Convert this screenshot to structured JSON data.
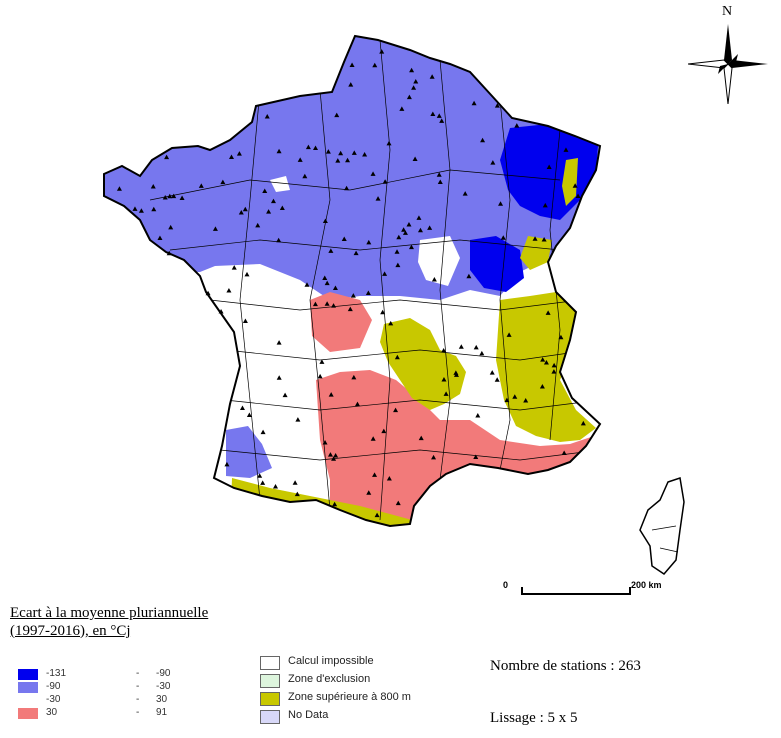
{
  "map": {
    "colors": {
      "class_dark_blue": "#0000ee",
      "class_blue": "#7777ee",
      "class_white": "#ffffff",
      "class_red": "#f27a7a",
      "zone_above_800": "#c8c800",
      "outline": "#000000"
    },
    "station_marker_icon": "triangle-icon"
  },
  "compass": {
    "north_label": "N"
  },
  "scale_bar": {
    "start_label": "0",
    "end_label": "200 km"
  },
  "title": {
    "line1": "Ecart à la moyenne pluriannuelle",
    "line2": "(1997-2016), en °Cj"
  },
  "legend": {
    "classes": [
      {
        "min": "-131",
        "max": "-90",
        "color": "#0000ee"
      },
      {
        "min": "-90",
        "max": "-30",
        "color": "#7777ee"
      },
      {
        "min": "-30",
        "max": "30",
        "color": "#ffffff"
      },
      {
        "min": "30",
        "max": "91",
        "color": "#f27a7a"
      }
    ],
    "range_separator": "-",
    "zones": [
      {
        "label": "Calcul  impossible",
        "color": "#ffffff"
      },
      {
        "label": "Zone d'exclusion",
        "color": "#ddf5dd"
      },
      {
        "label": "Zone supérieure à 800 m",
        "color": "#c8c800"
      },
      {
        "label": "No Data",
        "color": "#d8d8f8"
      }
    ]
  },
  "stats": {
    "stations": "Nombre de stations : 263",
    "smoothing": "Lissage : 5 x 5"
  }
}
